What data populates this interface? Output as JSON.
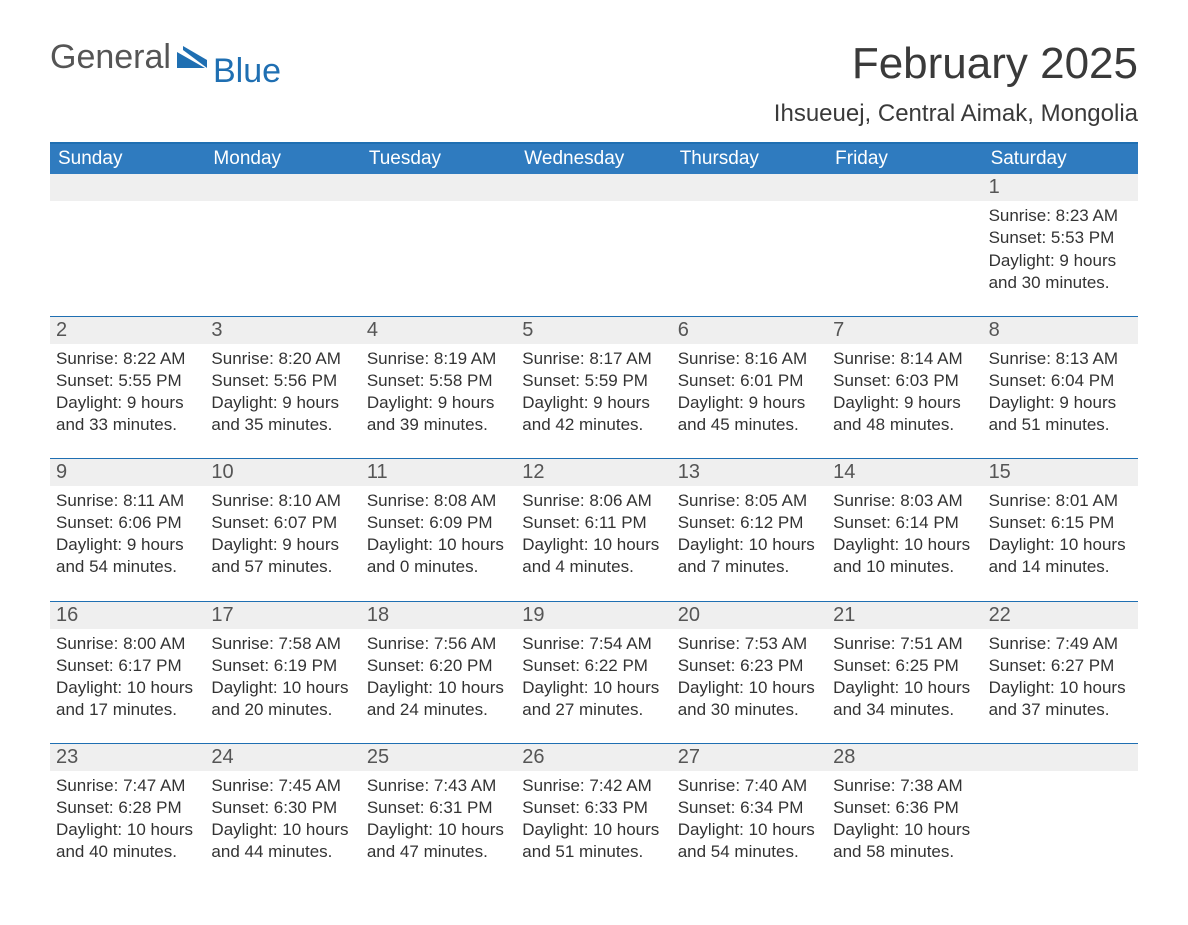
{
  "brand": {
    "part1": "General",
    "part2": "Blue"
  },
  "title": "February 2025",
  "location": "Ihsueuej, Central Aimak, Mongolia",
  "colors": {
    "header_bg": "#2f7bbf",
    "header_text": "#ffffff",
    "rule": "#1f6fb2",
    "daynum_bg": "#efefef",
    "body_text": "#333333",
    "logo_gray": "#555555",
    "logo_blue": "#1f6fb2",
    "page_bg": "#ffffff"
  },
  "weekdays": [
    "Sunday",
    "Monday",
    "Tuesday",
    "Wednesday",
    "Thursday",
    "Friday",
    "Saturday"
  ],
  "weeks": [
    [
      null,
      null,
      null,
      null,
      null,
      null,
      {
        "n": "1",
        "sunrise": "8:23 AM",
        "sunset": "5:53 PM",
        "daylight_a": "Daylight: 9 hours",
        "daylight_b": "and 30 minutes."
      }
    ],
    [
      {
        "n": "2",
        "sunrise": "8:22 AM",
        "sunset": "5:55 PM",
        "daylight_a": "Daylight: 9 hours",
        "daylight_b": "and 33 minutes."
      },
      {
        "n": "3",
        "sunrise": "8:20 AM",
        "sunset": "5:56 PM",
        "daylight_a": "Daylight: 9 hours",
        "daylight_b": "and 35 minutes."
      },
      {
        "n": "4",
        "sunrise": "8:19 AM",
        "sunset": "5:58 PM",
        "daylight_a": "Daylight: 9 hours",
        "daylight_b": "and 39 minutes."
      },
      {
        "n": "5",
        "sunrise": "8:17 AM",
        "sunset": "5:59 PM",
        "daylight_a": "Daylight: 9 hours",
        "daylight_b": "and 42 minutes."
      },
      {
        "n": "6",
        "sunrise": "8:16 AM",
        "sunset": "6:01 PM",
        "daylight_a": "Daylight: 9 hours",
        "daylight_b": "and 45 minutes."
      },
      {
        "n": "7",
        "sunrise": "8:14 AM",
        "sunset": "6:03 PM",
        "daylight_a": "Daylight: 9 hours",
        "daylight_b": "and 48 minutes."
      },
      {
        "n": "8",
        "sunrise": "8:13 AM",
        "sunset": "6:04 PM",
        "daylight_a": "Daylight: 9 hours",
        "daylight_b": "and 51 minutes."
      }
    ],
    [
      {
        "n": "9",
        "sunrise": "8:11 AM",
        "sunset": "6:06 PM",
        "daylight_a": "Daylight: 9 hours",
        "daylight_b": "and 54 minutes."
      },
      {
        "n": "10",
        "sunrise": "8:10 AM",
        "sunset": "6:07 PM",
        "daylight_a": "Daylight: 9 hours",
        "daylight_b": "and 57 minutes."
      },
      {
        "n": "11",
        "sunrise": "8:08 AM",
        "sunset": "6:09 PM",
        "daylight_a": "Daylight: 10 hours",
        "daylight_b": "and 0 minutes."
      },
      {
        "n": "12",
        "sunrise": "8:06 AM",
        "sunset": "6:11 PM",
        "daylight_a": "Daylight: 10 hours",
        "daylight_b": "and 4 minutes."
      },
      {
        "n": "13",
        "sunrise": "8:05 AM",
        "sunset": "6:12 PM",
        "daylight_a": "Daylight: 10 hours",
        "daylight_b": "and 7 minutes."
      },
      {
        "n": "14",
        "sunrise": "8:03 AM",
        "sunset": "6:14 PM",
        "daylight_a": "Daylight: 10 hours",
        "daylight_b": "and 10 minutes."
      },
      {
        "n": "15",
        "sunrise": "8:01 AM",
        "sunset": "6:15 PM",
        "daylight_a": "Daylight: 10 hours",
        "daylight_b": "and 14 minutes."
      }
    ],
    [
      {
        "n": "16",
        "sunrise": "8:00 AM",
        "sunset": "6:17 PM",
        "daylight_a": "Daylight: 10 hours",
        "daylight_b": "and 17 minutes."
      },
      {
        "n": "17",
        "sunrise": "7:58 AM",
        "sunset": "6:19 PM",
        "daylight_a": "Daylight: 10 hours",
        "daylight_b": "and 20 minutes."
      },
      {
        "n": "18",
        "sunrise": "7:56 AM",
        "sunset": "6:20 PM",
        "daylight_a": "Daylight: 10 hours",
        "daylight_b": "and 24 minutes."
      },
      {
        "n": "19",
        "sunrise": "7:54 AM",
        "sunset": "6:22 PM",
        "daylight_a": "Daylight: 10 hours",
        "daylight_b": "and 27 minutes."
      },
      {
        "n": "20",
        "sunrise": "7:53 AM",
        "sunset": "6:23 PM",
        "daylight_a": "Daylight: 10 hours",
        "daylight_b": "and 30 minutes."
      },
      {
        "n": "21",
        "sunrise": "7:51 AM",
        "sunset": "6:25 PM",
        "daylight_a": "Daylight: 10 hours",
        "daylight_b": "and 34 minutes."
      },
      {
        "n": "22",
        "sunrise": "7:49 AM",
        "sunset": "6:27 PM",
        "daylight_a": "Daylight: 10 hours",
        "daylight_b": "and 37 minutes."
      }
    ],
    [
      {
        "n": "23",
        "sunrise": "7:47 AM",
        "sunset": "6:28 PM",
        "daylight_a": "Daylight: 10 hours",
        "daylight_b": "and 40 minutes."
      },
      {
        "n": "24",
        "sunrise": "7:45 AM",
        "sunset": "6:30 PM",
        "daylight_a": "Daylight: 10 hours",
        "daylight_b": "and 44 minutes."
      },
      {
        "n": "25",
        "sunrise": "7:43 AM",
        "sunset": "6:31 PM",
        "daylight_a": "Daylight: 10 hours",
        "daylight_b": "and 47 minutes."
      },
      {
        "n": "26",
        "sunrise": "7:42 AM",
        "sunset": "6:33 PM",
        "daylight_a": "Daylight: 10 hours",
        "daylight_b": "and 51 minutes."
      },
      {
        "n": "27",
        "sunrise": "7:40 AM",
        "sunset": "6:34 PM",
        "daylight_a": "Daylight: 10 hours",
        "daylight_b": "and 54 minutes."
      },
      {
        "n": "28",
        "sunrise": "7:38 AM",
        "sunset": "6:36 PM",
        "daylight_a": "Daylight: 10 hours",
        "daylight_b": "and 58 minutes."
      },
      null
    ]
  ],
  "labels": {
    "sunrise_prefix": "Sunrise: ",
    "sunset_prefix": "Sunset: "
  }
}
